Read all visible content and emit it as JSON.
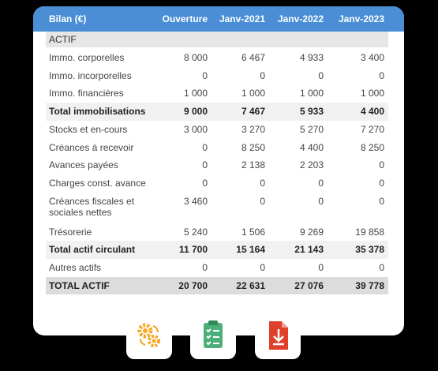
{
  "table": {
    "header": [
      "Bilan (€)",
      "Ouverture",
      "Janv-2021",
      "Janv-2022",
      "Janv-2023"
    ],
    "section": "ACTIF",
    "rows": [
      {
        "label": "Immo. corporelles",
        "values": [
          "8 000",
          "6 467",
          "4 933",
          "3 400"
        ]
      },
      {
        "label": "Immo. incorporelles",
        "values": [
          "0",
          "0",
          "0",
          "0"
        ]
      },
      {
        "label": "Immo. financières",
        "values": [
          "1 000",
          "1 000",
          "1 000",
          "1 000"
        ]
      },
      {
        "label": "Total immobilisations",
        "values": [
          "9 000",
          "7 467",
          "5 933",
          "4 400"
        ],
        "style": "total"
      },
      {
        "label": "Stocks et en-cours",
        "values": [
          "3 000",
          "3 270",
          "5 270",
          "7 270"
        ]
      },
      {
        "label": "Créances à recevoir",
        "values": [
          "0",
          "8 250",
          "4 400",
          "8 250"
        ]
      },
      {
        "label": "Avances payées",
        "values": [
          "0",
          "2 138",
          "2 203",
          "0"
        ]
      },
      {
        "label": "Charges const. avance",
        "values": [
          "0",
          "0",
          "0",
          "0"
        ]
      },
      {
        "label": "Créances fiscales et sociales nettes",
        "values": [
          "3 460",
          "0",
          "0",
          "0"
        ]
      },
      {
        "label": "Trésorerie",
        "values": [
          "5 240",
          "1 506",
          "9 269",
          "19 858"
        ]
      },
      {
        "label": "Total actif circulant",
        "values": [
          "11 700",
          "15 164",
          "21 143",
          "35 378"
        ],
        "style": "total"
      },
      {
        "label": "Autres actifs",
        "values": [
          "0",
          "0",
          "0",
          "0"
        ]
      },
      {
        "label": "TOTAL ACTIF",
        "values": [
          "20 700",
          "22 631",
          "27 076",
          "39 778"
        ],
        "style": "grand-total"
      }
    ]
  }
}
